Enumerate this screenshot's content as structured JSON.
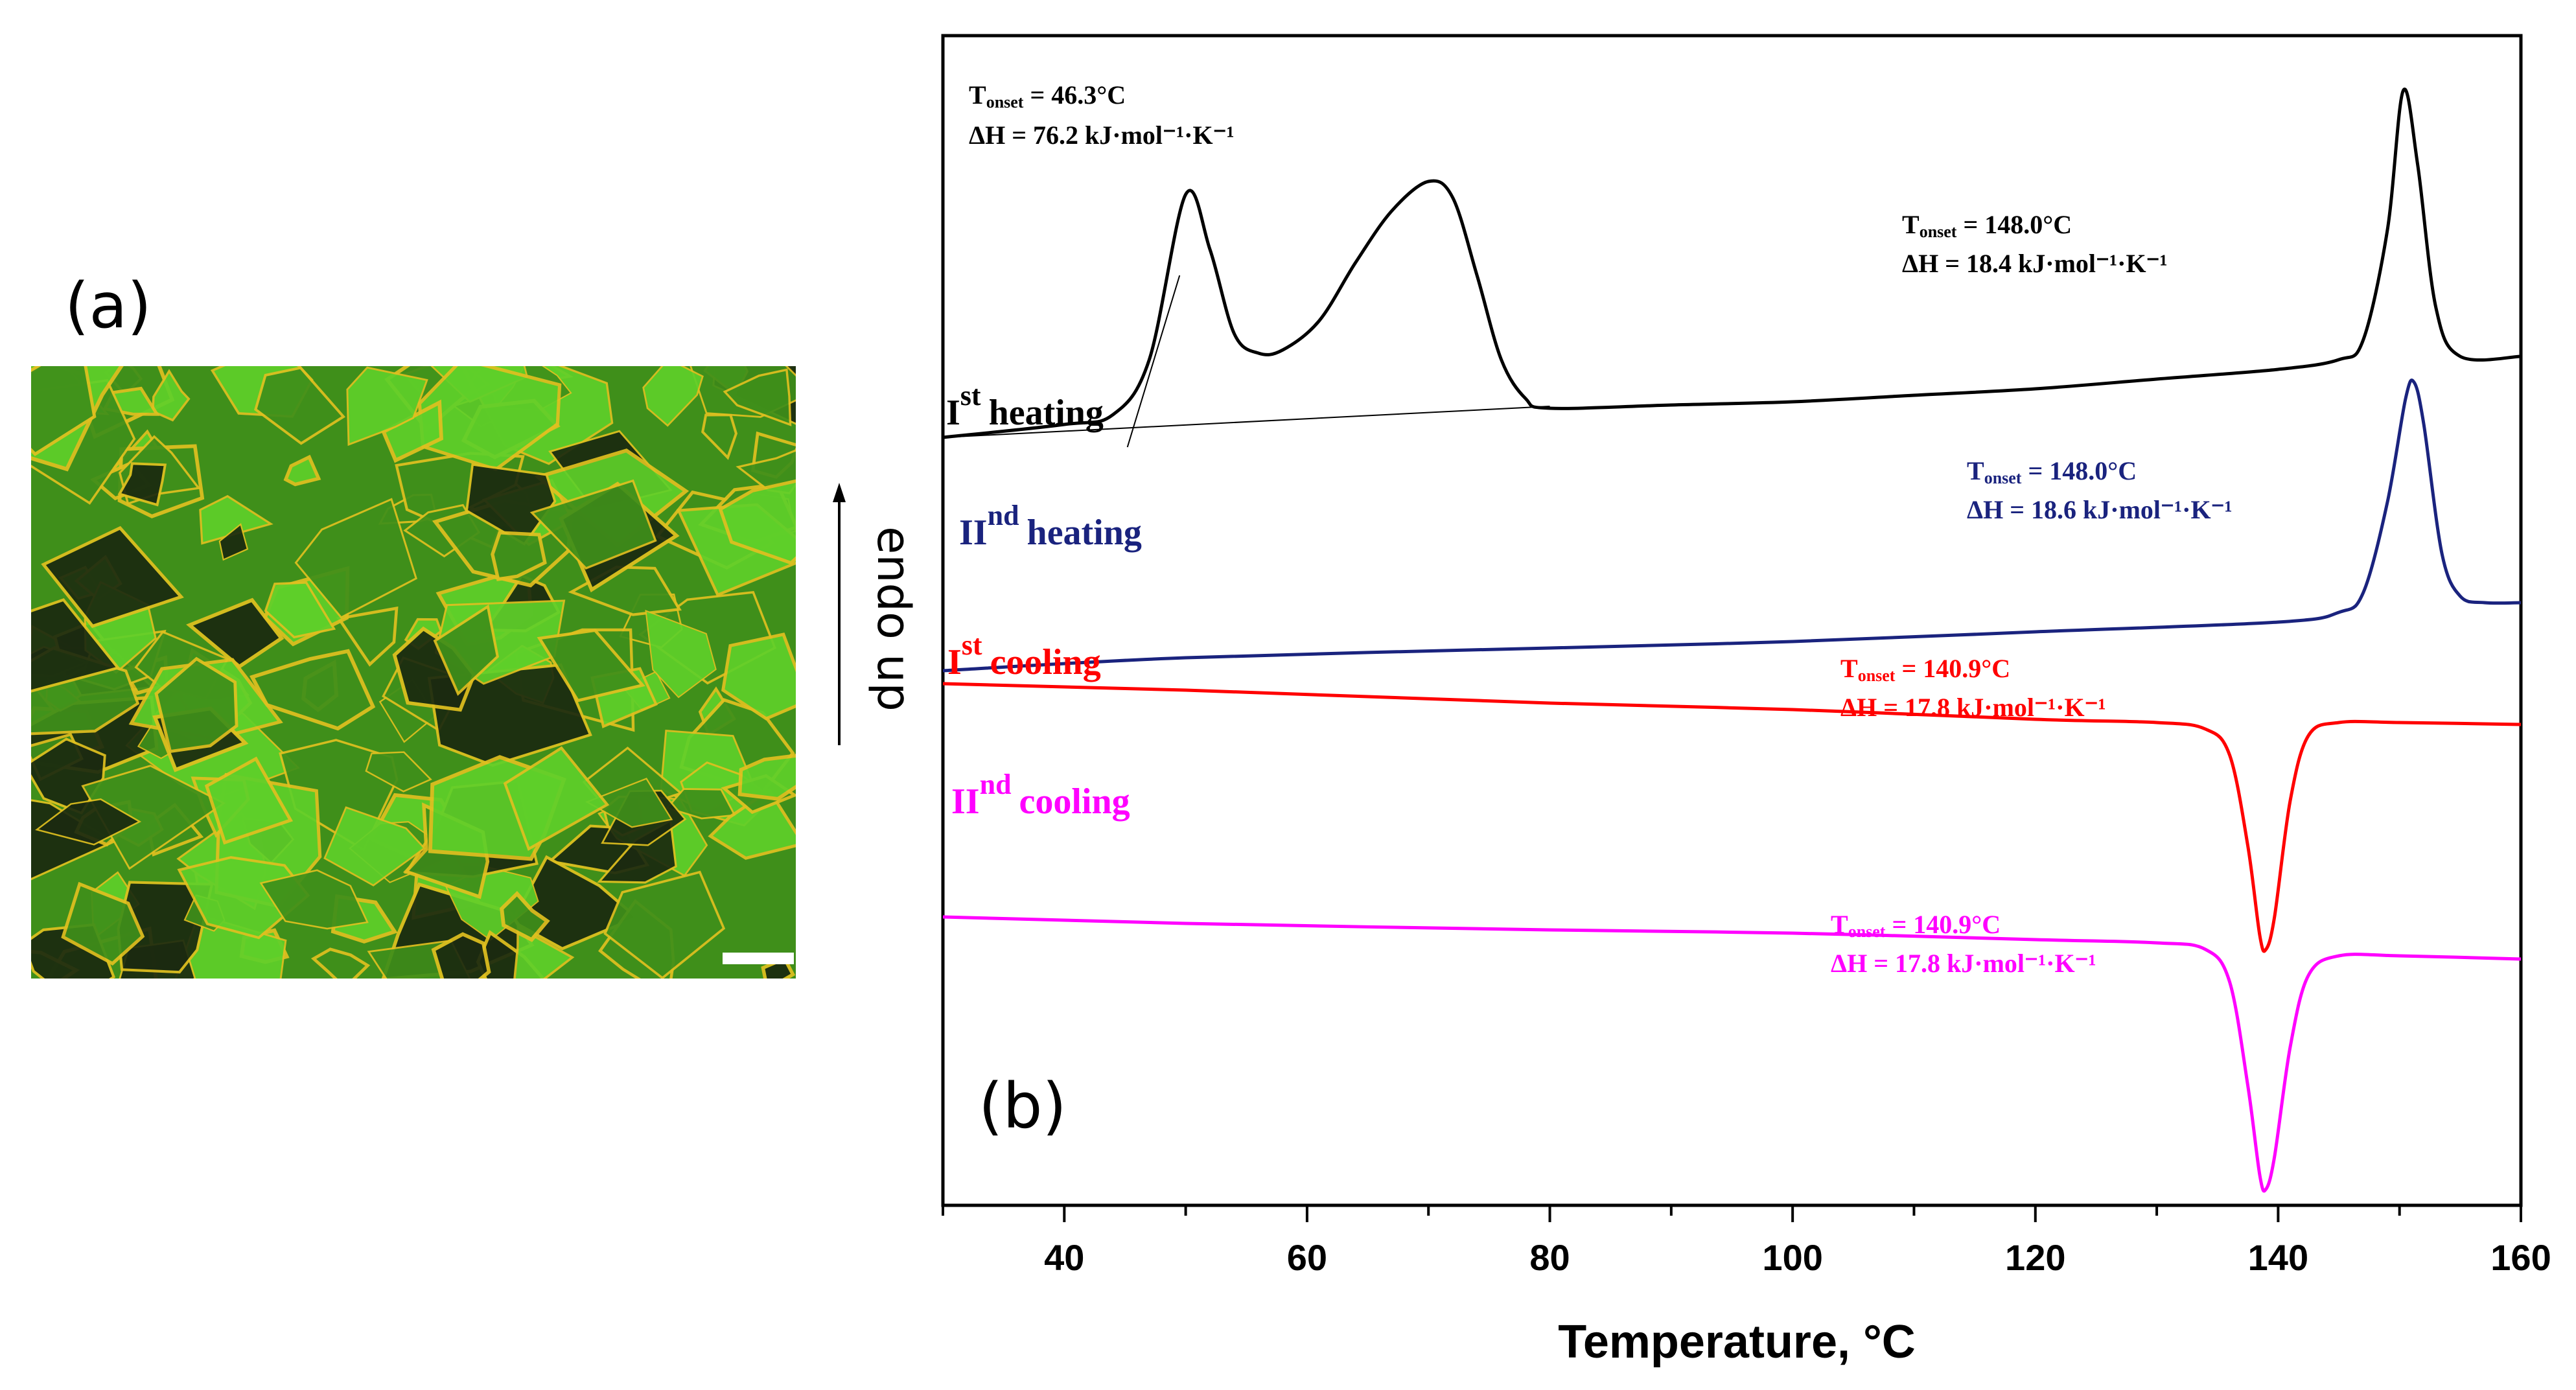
{
  "panel_a": {
    "label": "(a)",
    "micrograph": "polarized optical micrograph, green/yellow crystalline texture",
    "colors": {
      "base": "#3f8f1a",
      "bright": "#5fd02a",
      "edge": "#e0c020",
      "dark": "#1b2a10"
    }
  },
  "chart_data": {
    "type": "line",
    "panel_label": "(b)",
    "xlabel": "Temperature, °C",
    "ylabel": "endo up",
    "xlim": [
      30,
      160
    ],
    "x_ticks": [
      40,
      60,
      80,
      100,
      120,
      140,
      160
    ],
    "x_minor_step": 10,
    "series": [
      {
        "name": "I st heating",
        "label_main": "I",
        "label_sup": "st",
        "label_rest": "heating",
        "color": "#000000",
        "points": [
          [
            30,
            0.62
          ],
          [
            40,
            0.6
          ],
          [
            44,
            0.585
          ],
          [
            47,
            0.5
          ],
          [
            50,
            0.245
          ],
          [
            52,
            0.33
          ],
          [
            54,
            0.46
          ],
          [
            56,
            0.49
          ],
          [
            58,
            0.485
          ],
          [
            61,
            0.44
          ],
          [
            64,
            0.35
          ],
          [
            67,
            0.27
          ],
          [
            70,
            0.225
          ],
          [
            72,
            0.25
          ],
          [
            74,
            0.37
          ],
          [
            76,
            0.5
          ],
          [
            78,
            0.56
          ],
          [
            80,
            0.575
          ],
          [
            90,
            0.57
          ],
          [
            100,
            0.565
          ],
          [
            110,
            0.555
          ],
          [
            120,
            0.545
          ],
          [
            130,
            0.53
          ],
          [
            140,
            0.515
          ],
          [
            145,
            0.5
          ],
          [
            147,
            0.47
          ],
          [
            149,
            0.3
          ],
          [
            150.3,
            0.085
          ],
          [
            151.5,
            0.2
          ],
          [
            153,
            0.42
          ],
          [
            155,
            0.495
          ],
          [
            160,
            0.495
          ]
        ],
        "annotations": [
          {
            "line1": "T",
            "sub": "onset",
            "rest": " = 46.3°C",
            "line2": "ΔH = 76.2 kJ·mol⁻¹·K⁻¹"
          },
          {
            "line1": "T",
            "sub": "onset",
            "rest": " = 148.0°C",
            "line2": "ΔH = 18.4 kJ·mol⁻¹·K⁻¹"
          }
        ],
        "baseline": [
          [
            30,
            0.62
          ],
          [
            80,
            0.572
          ]
        ]
      },
      {
        "name": "II nd heating",
        "label_main": "II",
        "label_sup": "nd",
        "label_rest": "heating",
        "color": "#1a237e",
        "points": [
          [
            30,
            0.98
          ],
          [
            50,
            0.96
          ],
          [
            80,
            0.945
          ],
          [
            100,
            0.935
          ],
          [
            120,
            0.92
          ],
          [
            140,
            0.905
          ],
          [
            145,
            0.89
          ],
          [
            147,
            0.86
          ],
          [
            149,
            0.72
          ],
          [
            150.5,
            0.56
          ],
          [
            151.2,
            0.535
          ],
          [
            152,
            0.6
          ],
          [
            153.5,
            0.8
          ],
          [
            155,
            0.865
          ],
          [
            157,
            0.875
          ],
          [
            160,
            0.875
          ]
        ],
        "annotations": [
          {
            "line1": "T",
            "sub": "onset",
            "rest": " = 148.0°C",
            "line2": "ΔH = 18.6 kJ·mol⁻¹·K⁻¹"
          }
        ]
      },
      {
        "name": "I st cooling",
        "label_main": "I",
        "label_sup": "st",
        "label_rest": "cooling",
        "color": "#ff0000",
        "points": [
          [
            30,
            1.0
          ],
          [
            50,
            1.01
          ],
          [
            80,
            1.03
          ],
          [
            100,
            1.04
          ],
          [
            120,
            1.055
          ],
          [
            130,
            1.06
          ],
          [
            134,
            1.07
          ],
          [
            136,
            1.11
          ],
          [
            137.5,
            1.25
          ],
          [
            138.5,
            1.39
          ],
          [
            139,
            1.41
          ],
          [
            139.7,
            1.36
          ],
          [
            141,
            1.18
          ],
          [
            142.5,
            1.08
          ],
          [
            145,
            1.06
          ],
          [
            150,
            1.06
          ],
          [
            160,
            1.063
          ]
        ],
        "annotations": [
          {
            "line1": "T",
            "sub": "onset",
            "rest": " = 140.9°C",
            "line2": "ΔH = 17.8 kJ·mol⁻¹·K⁻¹"
          }
        ]
      },
      {
        "name": "II nd cooling",
        "label_main": "II",
        "label_sup": "nd",
        "label_rest": "cooling",
        "color": "#ff00ff",
        "points": [
          [
            30,
            1.36
          ],
          [
            50,
            1.37
          ],
          [
            80,
            1.38
          ],
          [
            100,
            1.385
          ],
          [
            120,
            1.395
          ],
          [
            130,
            1.4
          ],
          [
            134,
            1.41
          ],
          [
            136,
            1.46
          ],
          [
            137.5,
            1.62
          ],
          [
            138.5,
            1.76
          ],
          [
            139,
            1.78
          ],
          [
            139.7,
            1.73
          ],
          [
            141,
            1.56
          ],
          [
            142.5,
            1.45
          ],
          [
            145,
            1.42
          ],
          [
            150,
            1.42
          ],
          [
            160,
            1.425
          ]
        ],
        "annotations": [
          {
            "line1": "T",
            "sub": "onset",
            "rest": " = 140.9°C",
            "line2": "ΔH = 17.8 kJ·mol⁻¹·K⁻¹"
          }
        ]
      }
    ]
  }
}
